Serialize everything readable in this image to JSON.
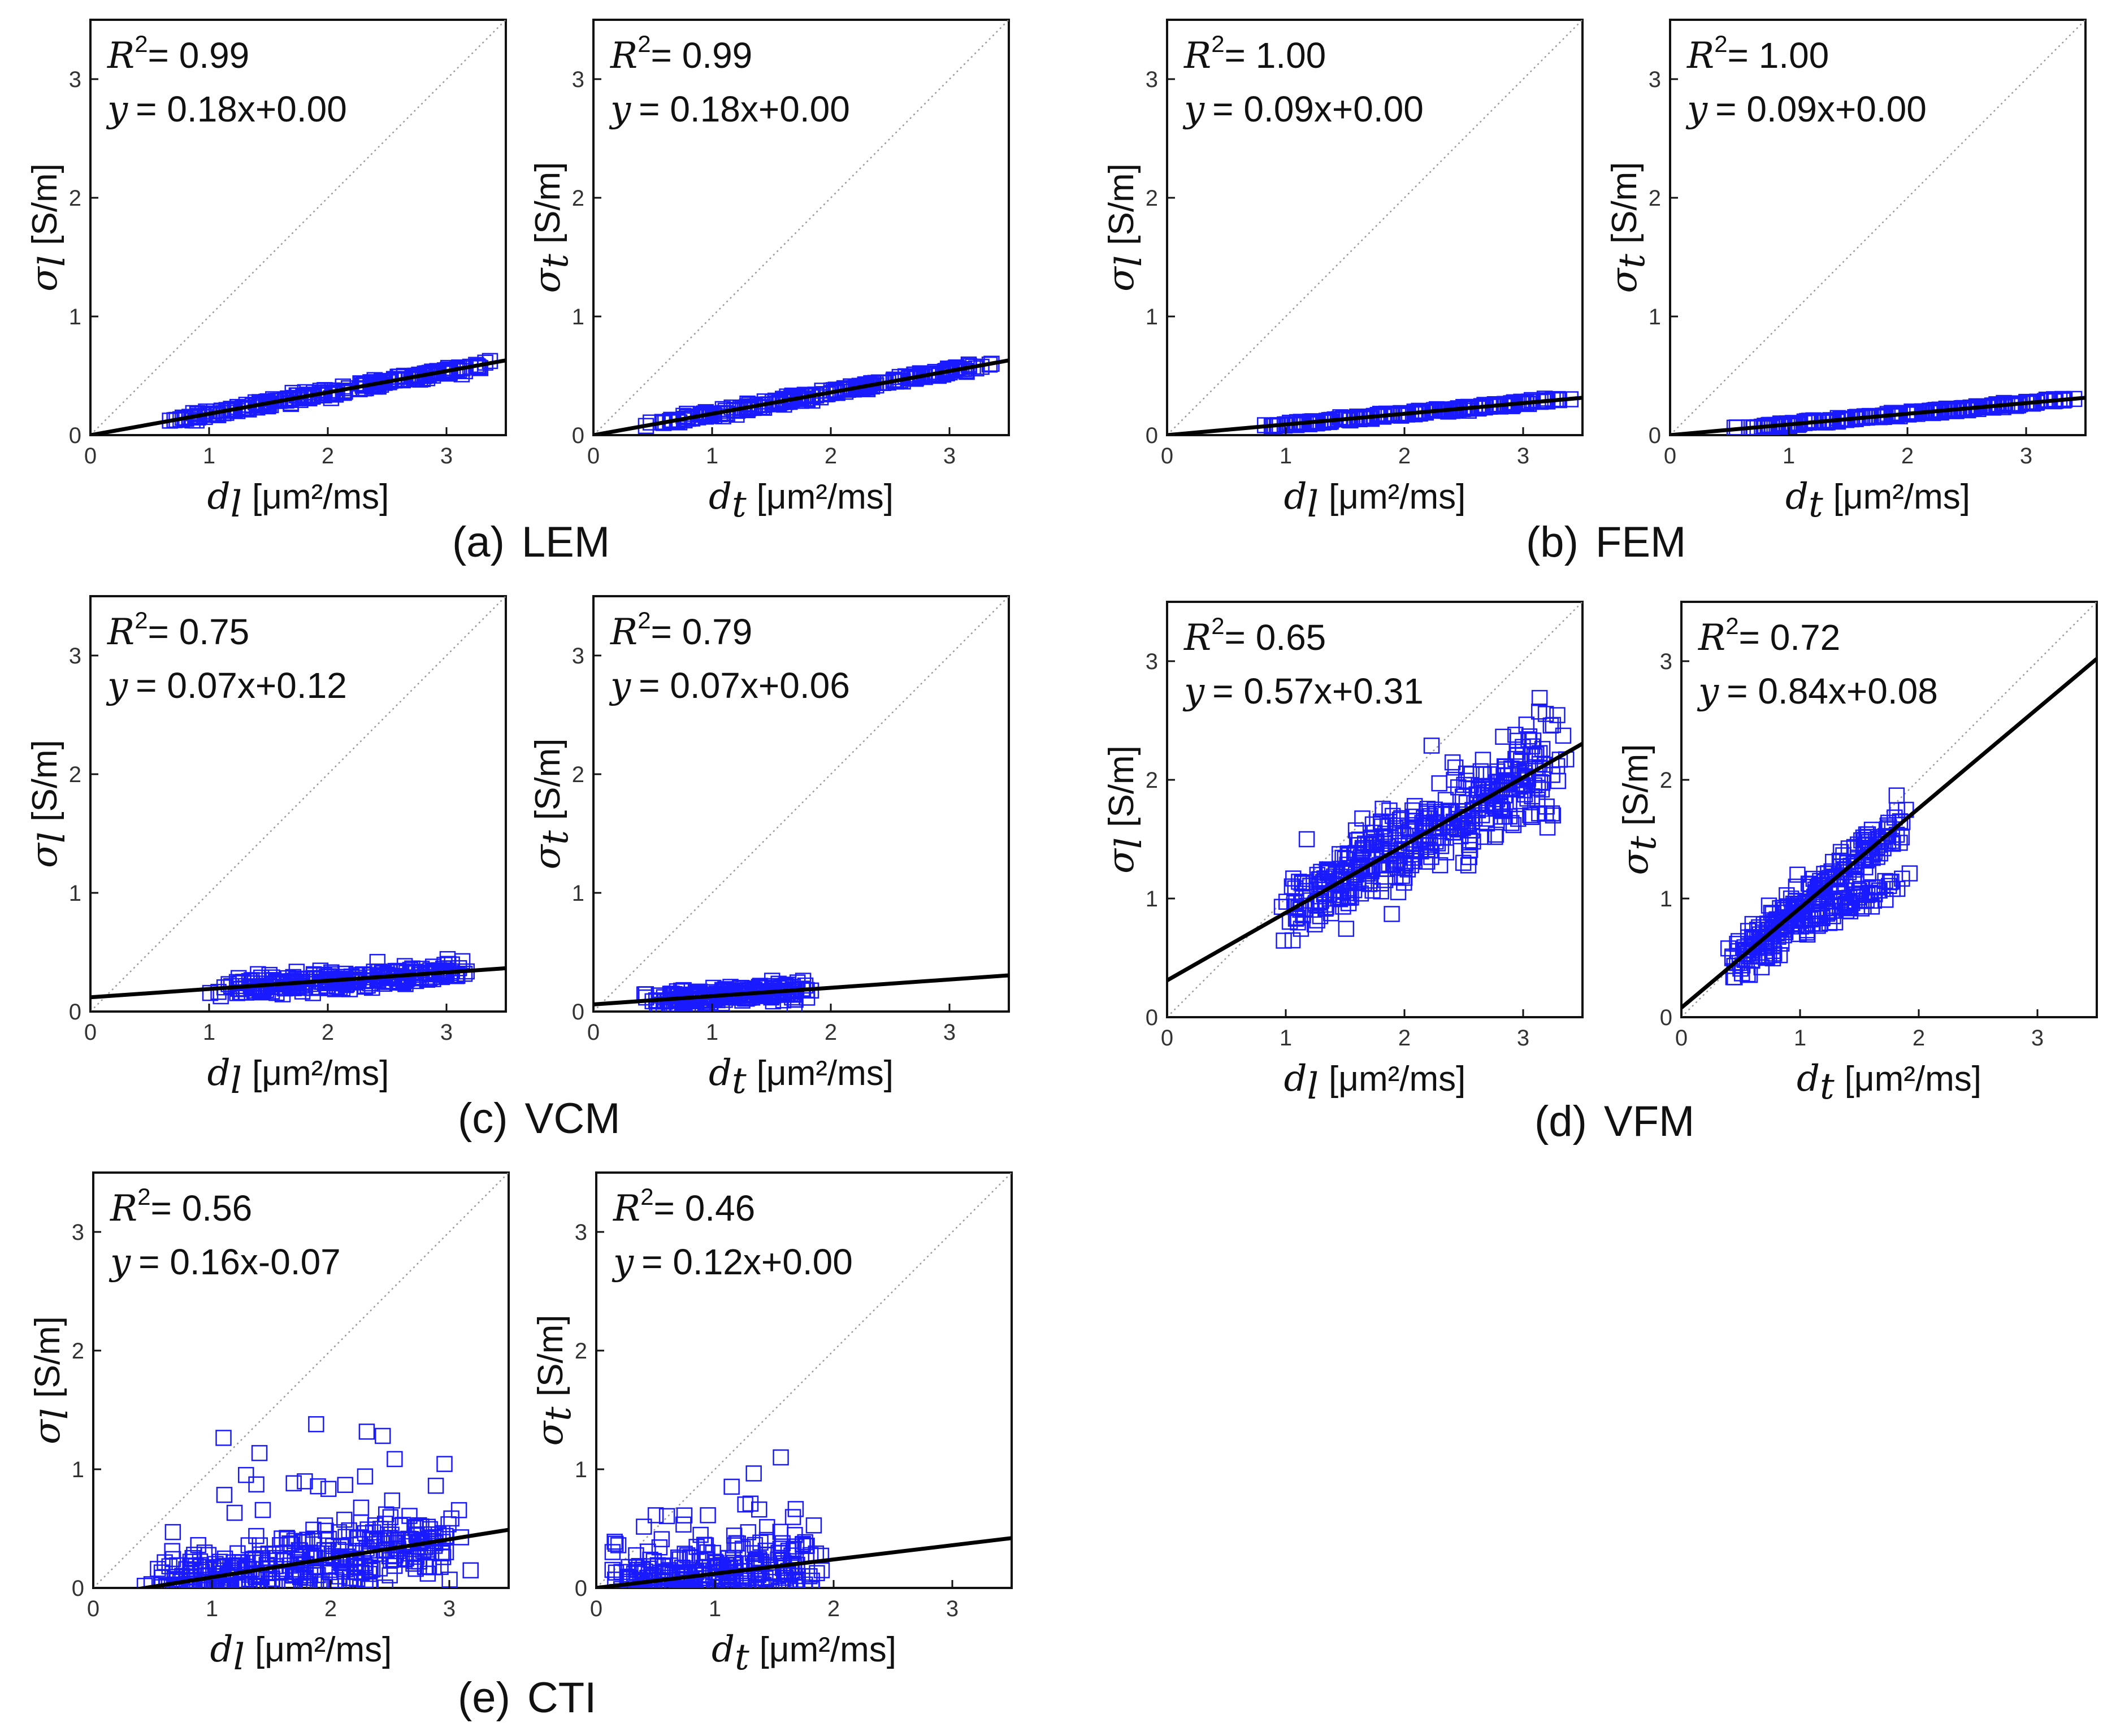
{
  "figure": {
    "panels": [
      {
        "label": "(a)",
        "name": "LEM"
      },
      {
        "label": "(b)",
        "name": "FEM"
      },
      {
        "label": "(c)",
        "name": "VCM"
      },
      {
        "label": "(d)",
        "name": "VFM"
      },
      {
        "label": "(e)",
        "name": "CTI"
      }
    ]
  },
  "style": {
    "marker_color": "#1a1aff",
    "fit_color": "#000000",
    "identity_color": "#9a9a9a"
  },
  "chart_data": [
    {
      "id": "a-long",
      "panel": "a",
      "type": "scatter",
      "xlabel_sym": "d",
      "xlabel_sub": "l",
      "xlabel_unit": "[μm²/ms]",
      "ylabel_sym": "σ",
      "ylabel_sub": "l",
      "ylabel_unit": "[S/m]",
      "xlim": [
        0,
        3.5
      ],
      "ylim": [
        0,
        3.5
      ],
      "xticks": [
        0,
        1,
        2,
        3
      ],
      "yticks": [
        0,
        1,
        2,
        3
      ],
      "r2": "0.99",
      "equation": "= 0.18x+0.00",
      "r2_prefix": "R",
      "r2_suffix": "= ",
      "eq_prefix": "y",
      "slope": 0.18,
      "intercept": 0.0,
      "scatter": {
        "x_min": 0.6,
        "x_max": 3.45,
        "spread": 0.015,
        "count": 220,
        "min_y": null
      }
    },
    {
      "id": "a-trans",
      "panel": "a",
      "type": "scatter",
      "xlabel_sym": "d",
      "xlabel_sub": "t",
      "xlabel_unit": "[μm²/ms]",
      "ylabel_sym": "σ",
      "ylabel_sub": "t",
      "ylabel_unit": "[S/m]",
      "xlim": [
        0,
        3.5
      ],
      "ylim": [
        0,
        3.5
      ],
      "xticks": [
        0,
        1,
        2,
        3
      ],
      "yticks": [
        0,
        1,
        2,
        3
      ],
      "r2": "0.99",
      "equation": "= 0.18x+0.00",
      "r2_prefix": "R",
      "r2_suffix": "= ",
      "eq_prefix": "y",
      "slope": 0.18,
      "intercept": 0.0,
      "scatter": {
        "x_min": 0.4,
        "x_max": 3.45,
        "spread": 0.015,
        "count": 220,
        "min_y": null
      }
    },
    {
      "id": "b-long",
      "panel": "b",
      "type": "scatter",
      "xlabel_sym": "d",
      "xlabel_sub": "l",
      "xlabel_unit": "[μm²/ms]",
      "ylabel_sym": "σ",
      "ylabel_sub": "l",
      "ylabel_unit": "[S/m]",
      "xlim": [
        0,
        3.5
      ],
      "ylim": [
        0,
        3.5
      ],
      "xticks": [
        0,
        1,
        2,
        3
      ],
      "yticks": [
        0,
        1,
        2,
        3
      ],
      "r2": "1.00",
      "equation": "= 0.09x+0.00",
      "r2_prefix": "R",
      "r2_suffix": "= ",
      "eq_prefix": "y",
      "slope": 0.09,
      "intercept": 0.0,
      "scatter": {
        "x_min": 0.7,
        "x_max": 3.45,
        "spread": 0.008,
        "count": 200,
        "min_y": null
      }
    },
    {
      "id": "b-trans",
      "panel": "b",
      "type": "scatter",
      "xlabel_sym": "d",
      "xlabel_sub": "t",
      "xlabel_unit": "[μm²/ms]",
      "ylabel_sym": "σ",
      "ylabel_sub": "t",
      "ylabel_unit": "[S/m]",
      "xlim": [
        0,
        3.5
      ],
      "ylim": [
        0,
        3.5
      ],
      "xticks": [
        0,
        1,
        2,
        3
      ],
      "yticks": [
        0,
        1,
        2,
        3
      ],
      "r2": "1.00",
      "equation": "= 0.09x+0.00",
      "r2_prefix": "R",
      "r2_suffix": "= ",
      "eq_prefix": "y",
      "slope": 0.09,
      "intercept": 0.0,
      "scatter": {
        "x_min": 0.4,
        "x_max": 3.45,
        "spread": 0.008,
        "count": 200,
        "min_y": null
      }
    },
    {
      "id": "c-long",
      "panel": "c",
      "type": "scatter",
      "xlabel_sym": "d",
      "xlabel_sub": "l",
      "xlabel_unit": "[μm²/ms]",
      "ylabel_sym": "σ",
      "ylabel_sub": "l",
      "ylabel_unit": "[S/m]",
      "xlim": [
        0,
        3.5
      ],
      "ylim": [
        0,
        3.5
      ],
      "xticks": [
        0,
        1,
        2,
        3
      ],
      "yticks": [
        0,
        1,
        2,
        3
      ],
      "r2": "0.75",
      "equation": "= 0.07x+0.12",
      "r2_prefix": "R",
      "r2_suffix": "= ",
      "eq_prefix": "y",
      "slope": 0.07,
      "intercept": 0.12,
      "scatter": {
        "x_min": 1.0,
        "x_max": 3.3,
        "spread": 0.04,
        "count": 260,
        "min_y": null
      }
    },
    {
      "id": "c-trans",
      "panel": "c",
      "type": "scatter",
      "xlabel_sym": "d",
      "xlabel_sub": "t",
      "xlabel_unit": "[μm²/ms]",
      "ylabel_sym": "σ",
      "ylabel_sub": "t",
      "ylabel_unit": "[S/m]",
      "xlim": [
        0,
        3.5
      ],
      "ylim": [
        0,
        3.5
      ],
      "xticks": [
        0,
        1,
        2,
        3
      ],
      "yticks": [
        0,
        1,
        2,
        3
      ],
      "r2": "0.79",
      "equation": "= 0.07x+0.06",
      "r2_prefix": "R",
      "r2_suffix": "= ",
      "eq_prefix": "y",
      "slope": 0.07,
      "intercept": 0.06,
      "scatter": {
        "x_min": 0.4,
        "x_max": 1.9,
        "spread": 0.035,
        "count": 220,
        "min_y": null
      }
    },
    {
      "id": "d-long",
      "panel": "d",
      "type": "scatter",
      "xlabel_sym": "d",
      "xlabel_sub": "l",
      "xlabel_unit": "[μm²/ms]",
      "ylabel_sym": "σ",
      "ylabel_sub": "l",
      "ylabel_unit": "[S/m]",
      "xlim": [
        0,
        3.5
      ],
      "ylim": [
        0,
        3.5
      ],
      "xticks": [
        0,
        1,
        2,
        3
      ],
      "yticks": [
        0,
        1,
        2,
        3
      ],
      "r2": "0.65",
      "equation": "= 0.57x+0.31",
      "r2_prefix": "R",
      "r2_suffix": "= ",
      "eq_prefix": "y",
      "slope": 0.57,
      "intercept": 0.31,
      "scatter": {
        "x_min": 0.9,
        "x_max": 3.45,
        "spread": 0.22,
        "count": 420,
        "min_y": null
      }
    },
    {
      "id": "d-trans",
      "panel": "d",
      "type": "scatter",
      "xlabel_sym": "d",
      "xlabel_sub": "t",
      "xlabel_unit": "[μm²/ms]",
      "ylabel_sym": "σ",
      "ylabel_sub": "t",
      "ylabel_unit": "[S/m]",
      "xlim": [
        0,
        3.5
      ],
      "ylim": [
        0,
        3.5
      ],
      "xticks": [
        0,
        1,
        2,
        3
      ],
      "yticks": [
        0,
        1,
        2,
        3
      ],
      "r2": "0.72",
      "equation": "= 0.84x+0.08",
      "r2_prefix": "R",
      "r2_suffix": "= ",
      "eq_prefix": "y",
      "slope": 0.84,
      "intercept": 0.08,
      "scatter": {
        "x_min": 0.35,
        "x_max": 1.95,
        "spread": 0.1,
        "count": 320,
        "min_y": null
      }
    },
    {
      "id": "e-long",
      "panel": "e",
      "type": "scatter",
      "xlabel_sym": "d",
      "xlabel_sub": "l",
      "xlabel_unit": "[μm²/ms]",
      "ylabel_sym": "σ",
      "ylabel_sub": "l",
      "ylabel_unit": "[S/m]",
      "xlim": [
        0,
        3.5
      ],
      "ylim": [
        0,
        3.5
      ],
      "xticks": [
        0,
        1,
        2,
        3
      ],
      "yticks": [
        0,
        1,
        2,
        3
      ],
      "r2": "0.56",
      "equation": "= 0.16x-0.07",
      "r2_prefix": "R",
      "r2_suffix": "= ",
      "eq_prefix": "y",
      "slope": 0.16,
      "intercept": -0.07,
      "scatter": {
        "x_min": 0.4,
        "x_max": 3.2,
        "spread": 0.14,
        "count": 380,
        "min_y": 0.0
      }
    },
    {
      "id": "e-trans",
      "panel": "e",
      "type": "scatter",
      "xlabel_sym": "d",
      "xlabel_sub": "t",
      "xlabel_unit": "[μm²/ms]",
      "ylabel_sym": "σ",
      "ylabel_sub": "t",
      "ylabel_unit": "[S/m]",
      "xlim": [
        0,
        3.5
      ],
      "ylim": [
        0,
        3.5
      ],
      "xticks": [
        0,
        1,
        2,
        3
      ],
      "yticks": [
        0,
        1,
        2,
        3
      ],
      "r2": "0.46",
      "equation": "= 0.12x+0.00",
      "r2_prefix": "R",
      "r2_suffix": "= ",
      "eq_prefix": "y",
      "slope": 0.12,
      "intercept": 0.0,
      "scatter": {
        "x_min": 0.0,
        "x_max": 1.95,
        "spread": 0.12,
        "count": 300,
        "min_y": -0.05
      }
    }
  ]
}
